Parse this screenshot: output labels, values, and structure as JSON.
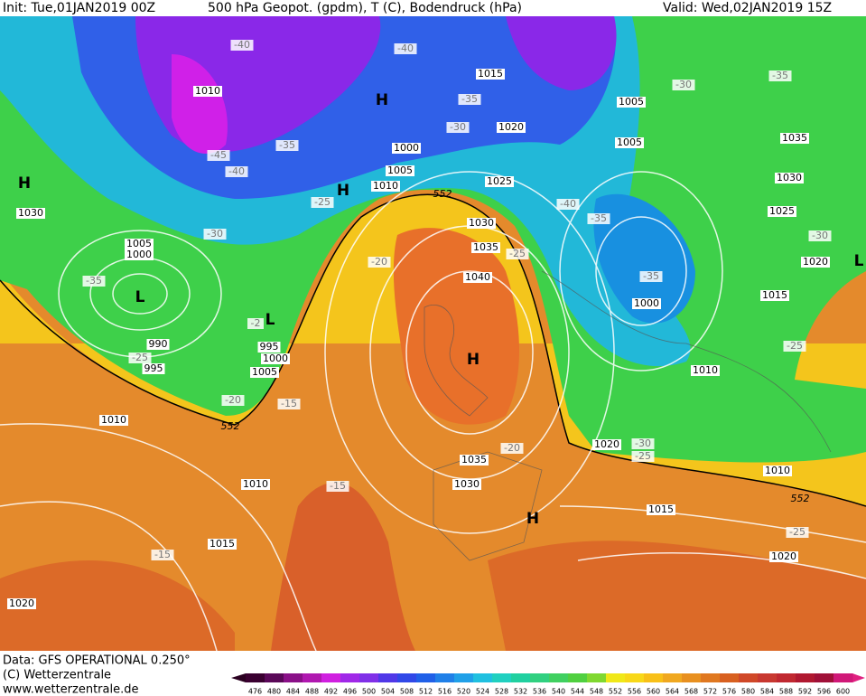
{
  "header": {
    "init": "Init: Tue,01JAN2019 00Z",
    "title": "500 hPa Geopot. (gpdm), T (C), Bodendruck (hPa)",
    "valid": "Valid: Wed,02JAN2019 15Z"
  },
  "map": {
    "isobars": [
      "1010",
      "1015",
      "1005",
      "1020",
      "1000",
      "1005",
      "1010",
      "1025",
      "1005",
      "1035",
      "1030",
      "1025",
      "1020",
      "1030",
      "1005",
      "1000",
      "1030",
      "1035",
      "1040",
      "1000",
      "1015",
      "990",
      "995",
      "995",
      "1000",
      "1005",
      "1010",
      "1010",
      "1020",
      "1035",
      "1030",
      "1010",
      "1010",
      "1015",
      "1015",
      "1020",
      "1020"
    ],
    "temperatures": [
      "-40",
      "-40",
      "-30",
      "-35",
      "-35",
      "-30",
      "-35",
      "-45",
      "-40",
      "-25",
      "-40",
      "-35",
      "-30",
      "-30",
      "-20",
      "-25",
      "-35",
      "-35",
      "-25",
      "-2",
      "-25",
      "-20",
      "-15",
      "-20",
      "-30",
      "-25",
      "-15",
      "-25",
      "-15"
    ],
    "centers": [
      "H",
      "H",
      "H",
      "L",
      "L",
      "H",
      "H",
      "L"
    ],
    "contour_552": [
      "552",
      "552",
      "552"
    ]
  },
  "footer": {
    "source": "Data: GFS OPERATIONAL 0.250°",
    "copyright": "(C) Wetterzentrale",
    "website": "www.wetterzentrale.de"
  },
  "colorbar": {
    "values": [
      476,
      480,
      484,
      488,
      492,
      496,
      500,
      504,
      508,
      512,
      516,
      520,
      524,
      528,
      532,
      536,
      540,
      544,
      548,
      552,
      556,
      560,
      564,
      568,
      572,
      576,
      580,
      584,
      588,
      592,
      596,
      600
    ]
  }
}
